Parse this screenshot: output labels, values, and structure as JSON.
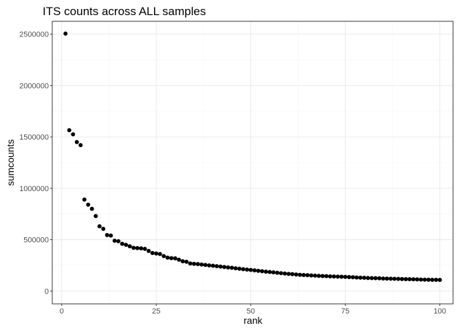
{
  "chart_data": {
    "type": "scatter",
    "title": "ITS counts across ALL samples",
    "xlabel": "rank",
    "ylabel": "sumcounts",
    "xlim": [
      -2.5,
      103.5
    ],
    "ylim": [
      -125000,
      2625000
    ],
    "xticks": [
      0,
      25,
      50,
      75,
      100
    ],
    "yticks": [
      0,
      500000,
      1000000,
      1500000,
      2000000,
      2500000
    ],
    "xtick_labels": [
      "0",
      "25",
      "50",
      "75",
      "100"
    ],
    "ytick_labels": [
      "0",
      "500000",
      "1000000",
      "1500000",
      "2000000",
      "2500000"
    ],
    "grid": true,
    "colors": {
      "panel_border": "#333333",
      "grid_major": "#ebebeb",
      "grid_minor": "#f5f5f5",
      "point": "#000000",
      "tick_label": "#4d4d4d"
    },
    "x": [
      1,
      2,
      3,
      4,
      5,
      6,
      7,
      8,
      9,
      10,
      11,
      12,
      13,
      14,
      15,
      16,
      17,
      18,
      19,
      20,
      21,
      22,
      23,
      24,
      25,
      26,
      27,
      28,
      29,
      30,
      31,
      32,
      33,
      34,
      35,
      36,
      37,
      38,
      39,
      40,
      41,
      42,
      43,
      44,
      45,
      46,
      47,
      48,
      49,
      50,
      51,
      52,
      53,
      54,
      55,
      56,
      57,
      58,
      59,
      60,
      61,
      62,
      63,
      64,
      65,
      66,
      67,
      68,
      69,
      70,
      71,
      72,
      73,
      74,
      75,
      76,
      77,
      78,
      79,
      80,
      81,
      82,
      83,
      84,
      85,
      86,
      87,
      88,
      89,
      90,
      91,
      92,
      93,
      94,
      95,
      96,
      97,
      98,
      99,
      100
    ],
    "y": [
      2505000,
      1565000,
      1525000,
      1450000,
      1420000,
      890000,
      840000,
      800000,
      730000,
      630000,
      605000,
      545000,
      540000,
      490000,
      485000,
      460000,
      450000,
      435000,
      420000,
      418000,
      415000,
      410000,
      390000,
      370000,
      365000,
      360000,
      340000,
      325000,
      320000,
      318000,
      305000,
      290000,
      285000,
      268000,
      265000,
      262000,
      258000,
      254000,
      250000,
      246000,
      242000,
      238000,
      234000,
      230000,
      226000,
      221000,
      217000,
      213000,
      209000,
      205000,
      201000,
      197000,
      193000,
      189000,
      185000,
      182000,
      178000,
      174000,
      170000,
      167000,
      164000,
      161000,
      158000,
      156000,
      154000,
      152000,
      150000,
      148000,
      146000,
      145000,
      143000,
      142000,
      140000,
      139000,
      138000,
      136000,
      134000,
      132000,
      130000,
      129000,
      127000,
      126000,
      125000,
      124000,
      122000,
      121000,
      120000,
      119000,
      118000,
      117000,
      116000,
      115000,
      114000,
      113000,
      112000,
      111000,
      110000,
      109500,
      109000,
      108000
    ]
  }
}
